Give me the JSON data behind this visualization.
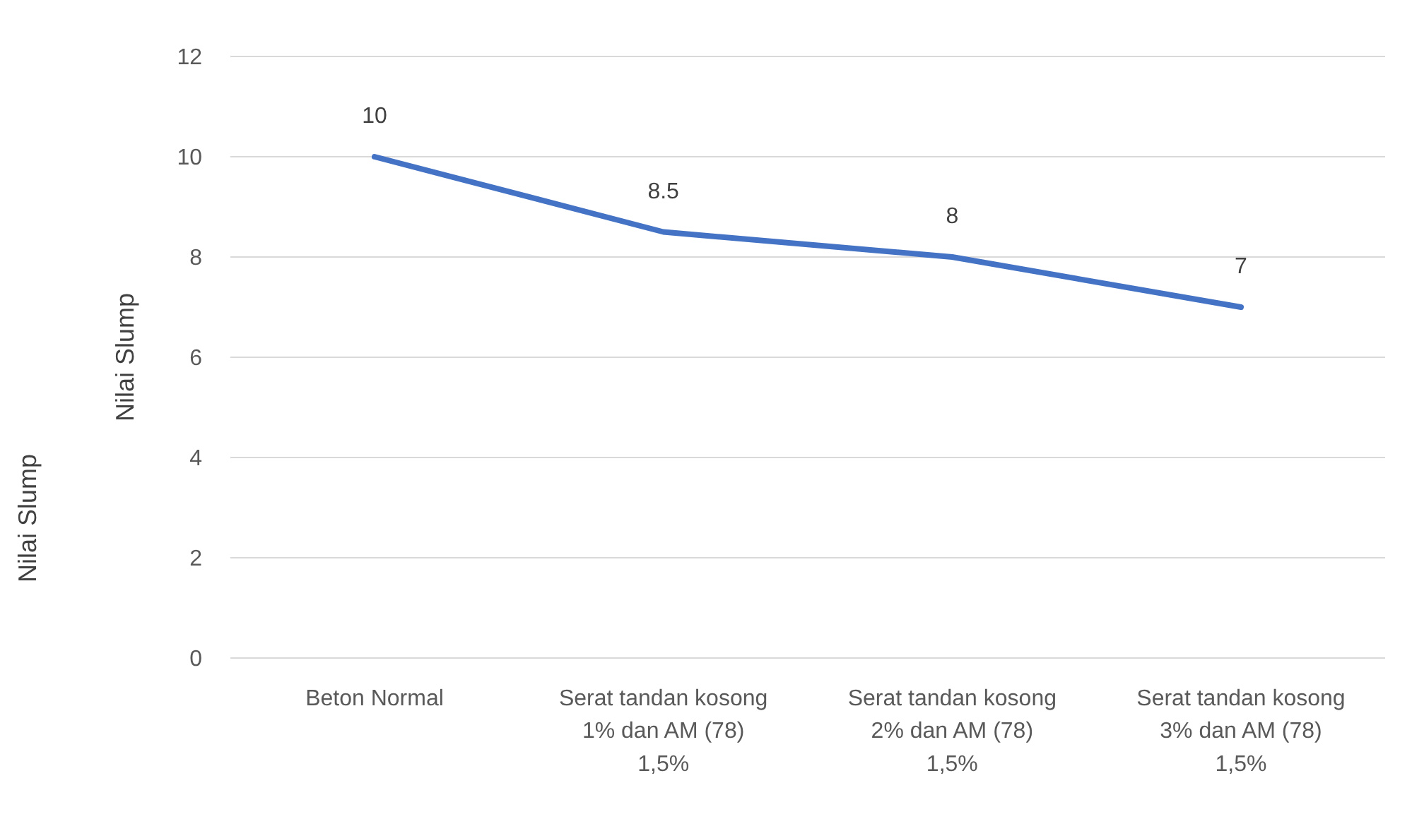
{
  "chart_data": {
    "type": "line",
    "ylabel": "Nilai Slump",
    "annotations": [
      "Nilai Slump"
    ],
    "categories": [
      "Beton Normal",
      "Serat tandan kosong\n1% dan AM (78)\n1,5%",
      "Serat tandan kosong\n2% dan AM (78)\n1,5%",
      "Serat tandan kosong\n3% dan AM (78)\n1,5%"
    ],
    "series": [
      {
        "color": "#4472c4",
        "values": [
          10,
          8.5,
          8,
          7
        ]
      }
    ],
    "ylim": [
      0,
      12
    ],
    "yticks": [
      0,
      2,
      4,
      6,
      8,
      10,
      12
    ],
    "grid": "y",
    "legend": false,
    "marker": "none",
    "line_style": "solid",
    "data_labels": true
  }
}
